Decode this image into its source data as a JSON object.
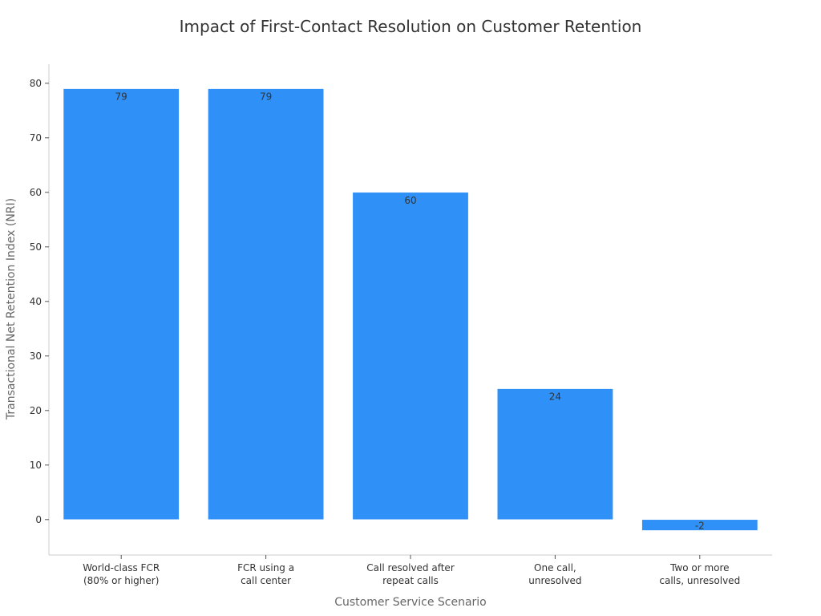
{
  "chart_data": {
    "type": "bar",
    "title": "Impact of First-Contact Resolution on Customer Retention",
    "xlabel": "Customer Service Scenario",
    "ylabel": "Transactional Net Retention Index (NRI)",
    "categories": [
      [
        "World-class FCR",
        "(80% or higher)"
      ],
      [
        "FCR using a",
        "call center"
      ],
      [
        "Call resolved after",
        "repeat calls"
      ],
      [
        "One call,",
        "unresolved"
      ],
      [
        "Two or more",
        "calls, unresolved"
      ]
    ],
    "values": [
      79,
      79,
      60,
      24,
      -2
    ],
    "ylim": [
      -6.5,
      83.5
    ],
    "yticks": [
      0,
      10,
      20,
      30,
      40,
      50,
      60,
      70,
      80
    ],
    "bar_color": "#2f91f7",
    "grid": false
  }
}
